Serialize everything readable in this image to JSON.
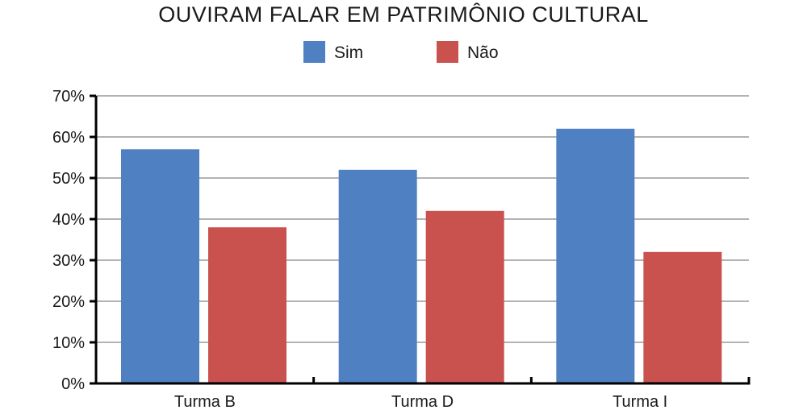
{
  "chart_data": {
    "type": "bar",
    "title": "OUVIRAM FALAR EM PATRIMÔNIO CULTURAL",
    "categories": [
      "Turma B",
      "Turma D",
      "Turma I"
    ],
    "series": [
      {
        "name": "Sim",
        "values": [
          57,
          52,
          62
        ],
        "color": "#4f81c2"
      },
      {
        "name": "Não",
        "values": [
          38,
          42,
          32
        ],
        "color": "#c9524e"
      }
    ],
    "yticks": [
      "0%",
      "10%",
      "20%",
      "30%",
      "40%",
      "50%",
      "60%",
      "70%"
    ],
    "ylim": [
      0,
      70
    ],
    "grid": true,
    "legend_position": "top-center"
  }
}
